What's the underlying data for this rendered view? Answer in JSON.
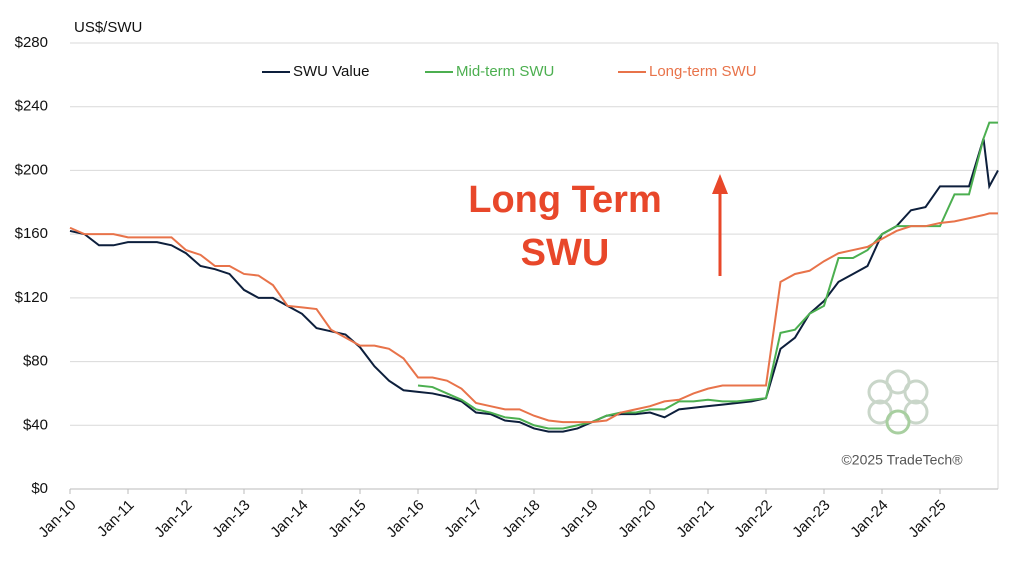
{
  "chart_data": {
    "type": "line",
    "y_label": "US$/SWU",
    "annotation": [
      "Long Term",
      "SWU"
    ],
    "credit": "©2025 TradeTech®",
    "x": [
      2010,
      2010.25,
      2010.5,
      2010.75,
      2011,
      2011.25,
      2011.5,
      2011.75,
      2012,
      2012.25,
      2012.5,
      2012.75,
      2013,
      2013.25,
      2013.5,
      2013.75,
      2014,
      2014.25,
      2014.5,
      2014.75,
      2015,
      2015.25,
      2015.5,
      2015.75,
      2016,
      2016.25,
      2016.5,
      2016.75,
      2017,
      2017.25,
      2017.5,
      2017.75,
      2018,
      2018.25,
      2018.5,
      2018.75,
      2019,
      2019.25,
      2019.5,
      2019.75,
      2020,
      2020.25,
      2020.5,
      2020.75,
      2021,
      2021.25,
      2021.5,
      2021.75,
      2022,
      2022.25,
      2022.5,
      2022.75,
      2023,
      2023.25,
      2023.5,
      2023.75,
      2024,
      2024.25,
      2024.5,
      2024.75,
      2025,
      2025.25,
      2025.5,
      2025.75,
      2025.85,
      2026
    ],
    "series": [
      {
        "name": "SWU Value",
        "color": "#0d1f3c",
        "values": [
          162,
          160,
          153,
          153,
          155,
          155,
          155,
          153,
          148,
          140,
          138,
          135,
          125,
          120,
          120,
          115,
          110,
          101,
          99,
          97,
          89,
          77,
          68,
          62,
          61,
          60,
          58,
          55,
          48,
          47,
          43,
          42,
          38,
          36,
          36,
          38,
          42,
          46,
          47,
          47,
          48,
          45,
          50,
          51,
          52,
          53,
          54,
          55,
          57,
          88,
          95,
          110,
          118,
          130,
          135,
          140,
          160,
          165,
          175,
          177,
          190,
          190,
          190,
          220,
          190,
          200
        ]
      },
      {
        "name": "Mid-term SWU",
        "color": "#4caf50",
        "values": [
          null,
          null,
          null,
          null,
          null,
          null,
          null,
          null,
          null,
          null,
          null,
          null,
          null,
          null,
          null,
          null,
          null,
          null,
          null,
          null,
          null,
          null,
          null,
          null,
          65,
          64,
          60,
          56,
          50,
          48,
          45,
          44,
          40,
          38,
          38,
          40,
          42,
          46,
          48,
          48,
          50,
          50,
          55,
          55,
          56,
          55,
          55,
          56,
          57,
          98,
          100,
          110,
          115,
          145,
          145,
          150,
          160,
          165,
          165,
          165,
          165,
          185,
          185,
          220,
          230,
          230
        ]
      },
      {
        "name": "Long-term SWU",
        "color": "#e8734a",
        "values": [
          164,
          160,
          160,
          160,
          158,
          158,
          158,
          158,
          150,
          147,
          140,
          140,
          135,
          134,
          128,
          115,
          114,
          113,
          100,
          95,
          90,
          90,
          88,
          82,
          70,
          70,
          68,
          63,
          54,
          52,
          50,
          50,
          46,
          43,
          42,
          42,
          42,
          43,
          48,
          50,
          52,
          55,
          56,
          60,
          63,
          65,
          65,
          65,
          65,
          130,
          135,
          137,
          143,
          148,
          150,
          152,
          157,
          162,
          165,
          165,
          167,
          168,
          170,
          172,
          173,
          173
        ]
      }
    ],
    "xlim": [
      2010,
      2026
    ],
    "xticks": [
      {
        "value": 2010,
        "label": "Jan-10"
      },
      {
        "value": 2011,
        "label": "Jan-11"
      },
      {
        "value": 2012,
        "label": "Jan-12"
      },
      {
        "value": 2013,
        "label": "Jan-13"
      },
      {
        "value": 2014,
        "label": "Jan-14"
      },
      {
        "value": 2015,
        "label": "Jan-15"
      },
      {
        "value": 2016,
        "label": "Jan-16"
      },
      {
        "value": 2017,
        "label": "Jan-17"
      },
      {
        "value": 2018,
        "label": "Jan-18"
      },
      {
        "value": 2019,
        "label": "Jan-19"
      },
      {
        "value": 2020,
        "label": "Jan-20"
      },
      {
        "value": 2021,
        "label": "Jan-21"
      },
      {
        "value": 2022,
        "label": "Jan-22"
      },
      {
        "value": 2023,
        "label": "Jan-23"
      },
      {
        "value": 2024,
        "label": "Jan-24"
      },
      {
        "value": 2025,
        "label": "Jan-25"
      }
    ],
    "ylim": [
      0,
      280
    ],
    "yticks": [
      {
        "value": 0,
        "label": "$0"
      },
      {
        "value": 40,
        "label": "$40"
      },
      {
        "value": 80,
        "label": "$80"
      },
      {
        "value": 120,
        "label": "$120"
      },
      {
        "value": 160,
        "label": "$160"
      },
      {
        "value": 200,
        "label": "$200"
      },
      {
        "value": 240,
        "label": "$240"
      },
      {
        "value": 280,
        "label": "$280"
      }
    ],
    "grid": true
  }
}
